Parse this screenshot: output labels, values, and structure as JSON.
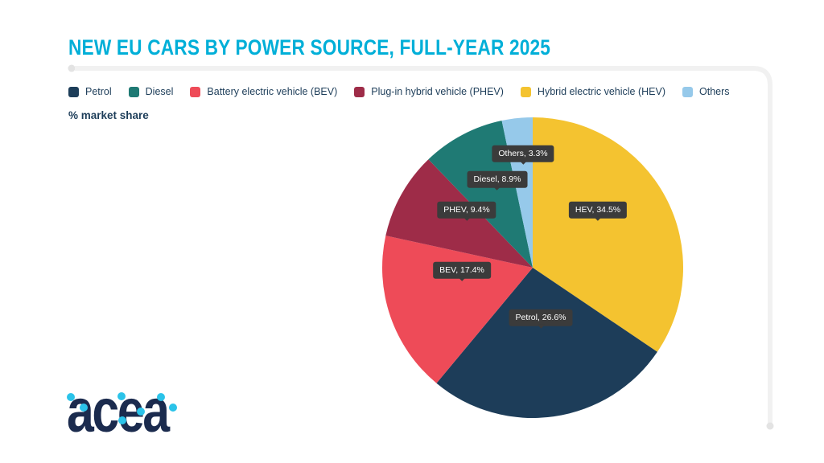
{
  "header": {
    "title": "NEW EU CARS BY POWER SOURCE, FULL-YEAR 2025"
  },
  "footer": {
    "brand": "acea"
  },
  "legend": {
    "items": [
      {
        "label": "Petrol",
        "color": "#1D3D59"
      },
      {
        "label": "Diesel",
        "color": "#1F7A74"
      },
      {
        "label": "Battery electric vehicle (BEV)",
        "color": "#EE4B58"
      },
      {
        "label": "Plug-in hybrid vehicle (PHEV)",
        "color": "#9E2C48"
      },
      {
        "label": "Hybrid electric vehicle (HEV)",
        "color": "#F4C330"
      },
      {
        "label": "Others",
        "color": "#96C9EA"
      }
    ]
  },
  "chart_data": {
    "type": "pie",
    "title": "NEW EU CARS BY POWER SOURCE, FULL-YEAR 2025",
    "value_unit": "% market share",
    "start_angle": "12-o-clock",
    "direction": "clockwise",
    "segments": [
      {
        "label": "HEV",
        "name": "Hybrid electric vehicle (HEV)",
        "value": 34.5,
        "color": "#F4C330",
        "callout": "HEV, 34.5%"
      },
      {
        "label": "Petrol",
        "name": "Petrol",
        "value": 26.6,
        "color": "#1D3D59",
        "callout": "Petrol, 26.6%"
      },
      {
        "label": "BEV",
        "name": "Battery electric vehicle (BEV)",
        "value": 17.4,
        "color": "#EE4B58",
        "callout": "BEV, 17.4%"
      },
      {
        "label": "PHEV",
        "name": "Plug-in hybrid vehicle (PHEV)",
        "value": 9.4,
        "color": "#9E2C48",
        "callout": "PHEV, 9.4%"
      },
      {
        "label": "Diesel",
        "name": "Diesel",
        "value": 8.9,
        "color": "#1F7A74",
        "callout": "Diesel, 8.9%"
      },
      {
        "label": "Others",
        "name": "Others",
        "value": 3.3,
        "color": "#96C9EA",
        "callout": "Others, 3.3%"
      }
    ]
  },
  "colors": {
    "accent_cyan": "#00AFD8",
    "tooltip_bg": "#3B3B3B",
    "logo_navy": "#1B2B4E",
    "logo_dot_cyan": "#2BC3E9",
    "frame_line_gray": "#F1F1F1",
    "frame_dot_gray": "#E3E3E3"
  }
}
